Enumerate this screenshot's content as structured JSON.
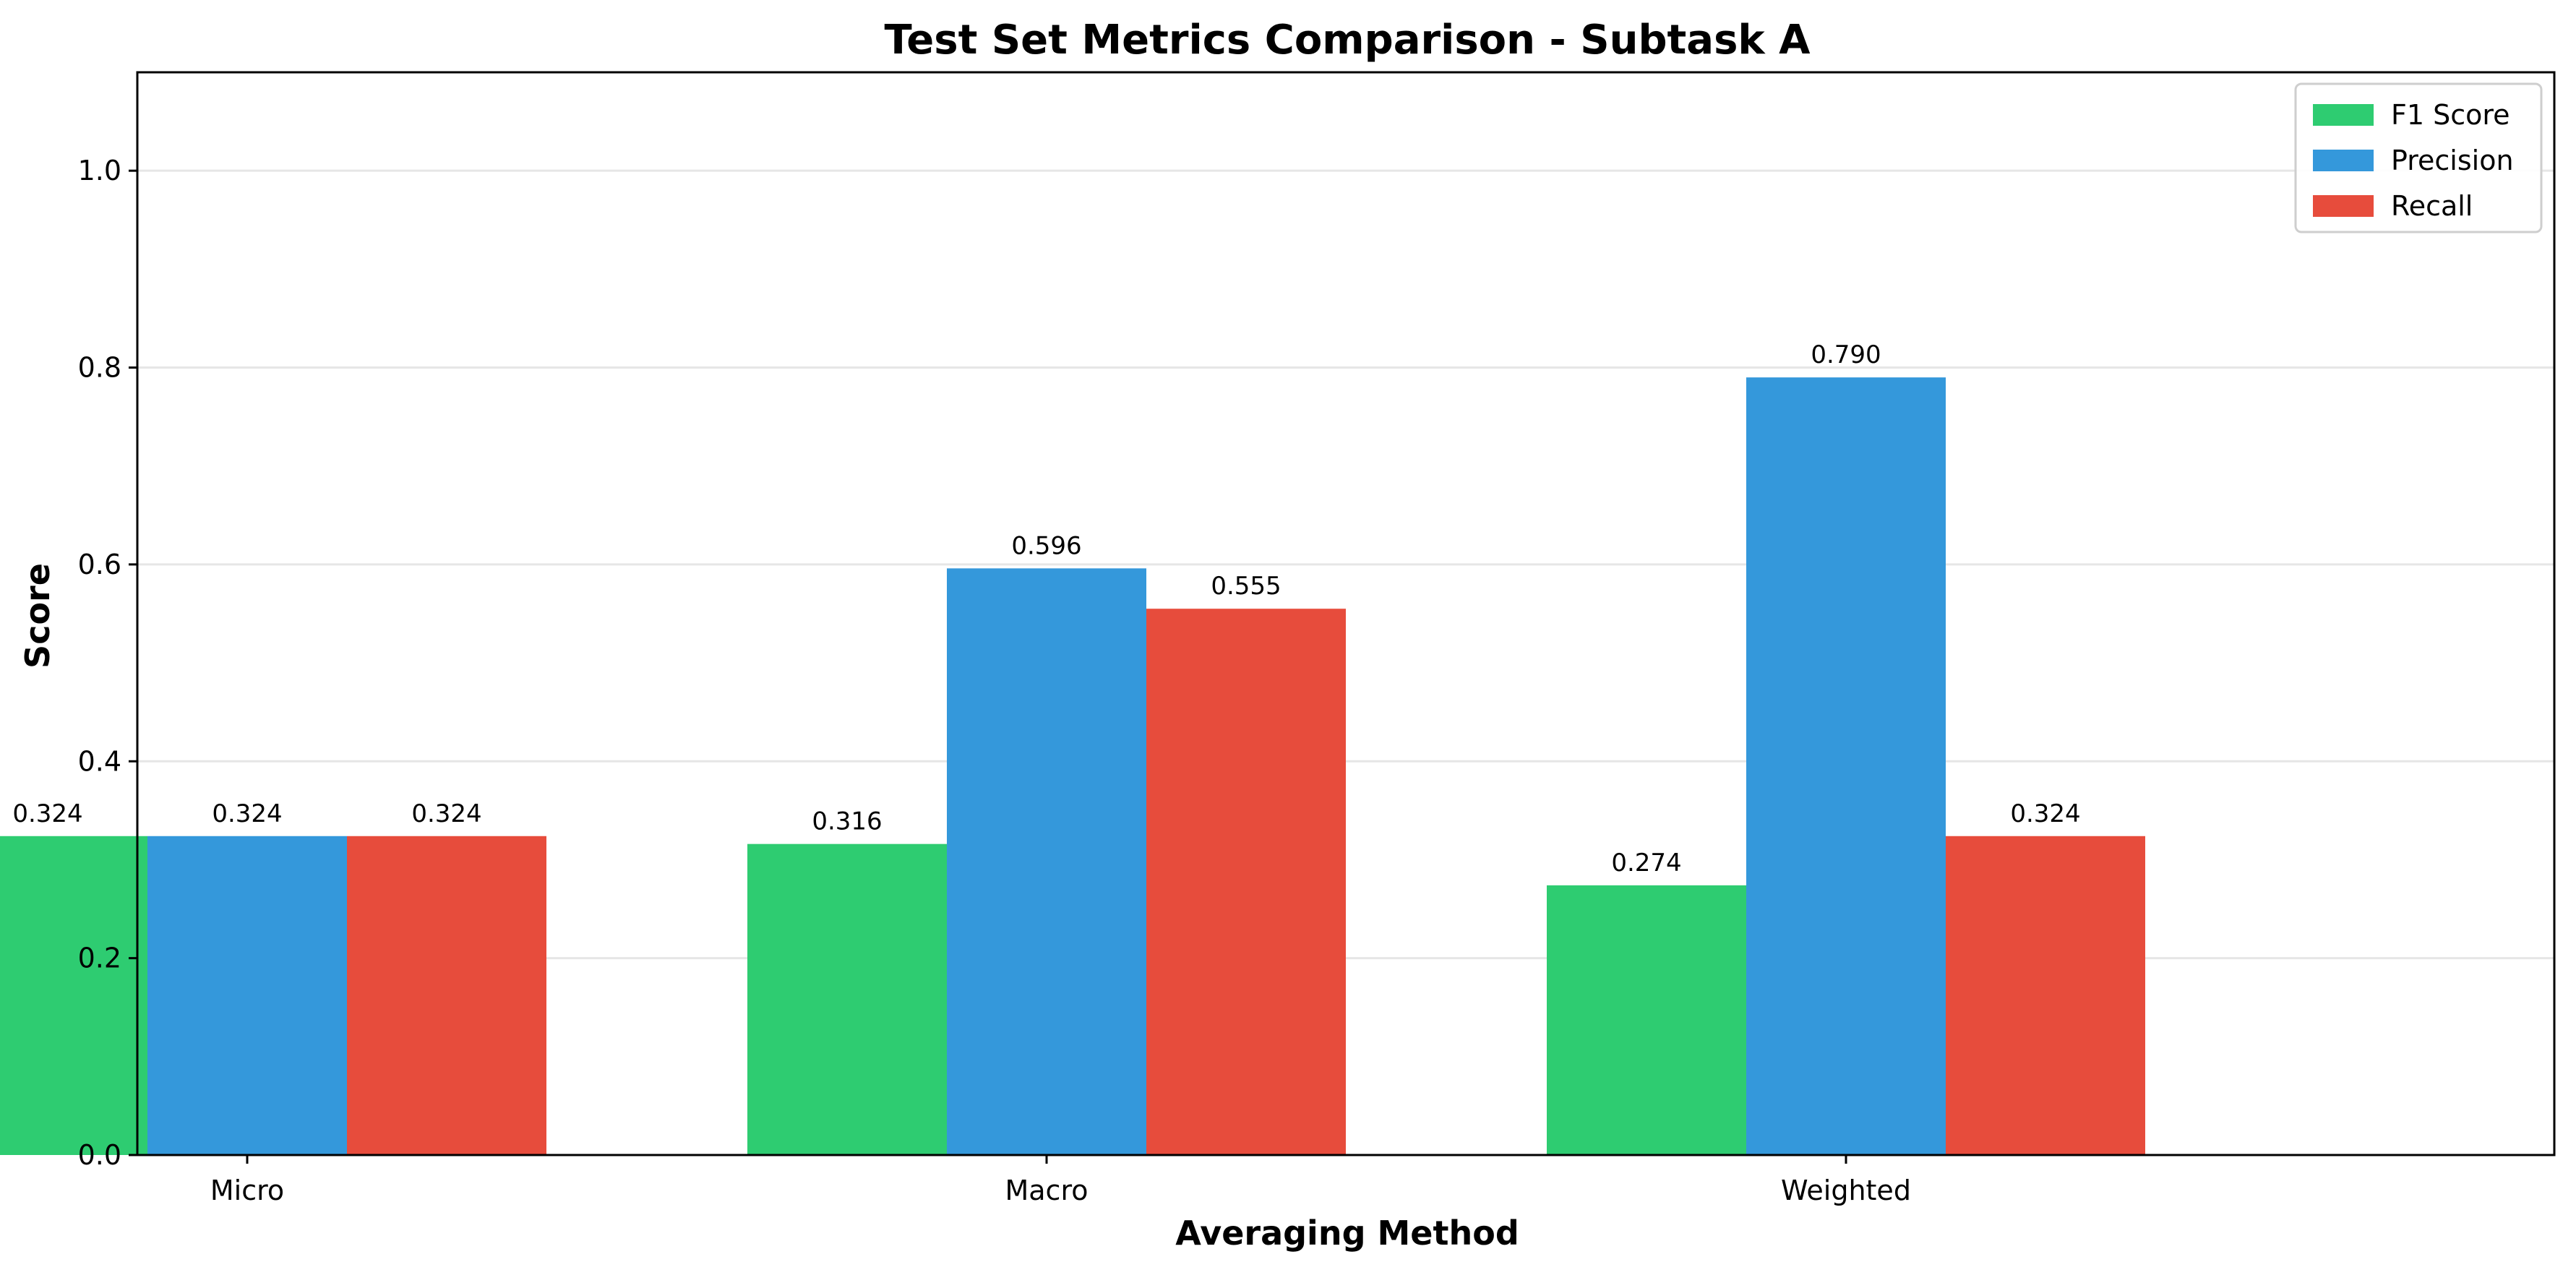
{
  "chart_data": {
    "type": "bar",
    "title": "Test Set Metrics Comparison - Subtask A",
    "xlabel": "Averaging Method",
    "ylabel": "Score",
    "categories": [
      "Micro",
      "Macro",
      "Weighted"
    ],
    "series": [
      {
        "name": "F1 Score",
        "color": "#2ecc71",
        "values": [
          0.324,
          0.316,
          0.274
        ]
      },
      {
        "name": "Precision",
        "color": "#3498db",
        "values": [
          0.324,
          0.596,
          0.79
        ]
      },
      {
        "name": "Recall",
        "color": "#e74c3c",
        "values": [
          0.324,
          0.555,
          0.324
        ]
      }
    ],
    "data_labels": [
      [
        "0.324",
        "0.316",
        "0.274"
      ],
      [
        "0.324",
        "0.596",
        "0.790"
      ],
      [
        "0.324",
        "0.555",
        "0.324"
      ]
    ],
    "ylim": [
      0,
      1.1
    ],
    "yticks": [
      0.0,
      0.2,
      0.4,
      0.6,
      0.8,
      1.0
    ],
    "ytick_labels": [
      "0.0",
      "0.2",
      "0.4",
      "0.6",
      "0.8",
      "1.0"
    ],
    "grid": "y",
    "legend_position": "top-right"
  }
}
